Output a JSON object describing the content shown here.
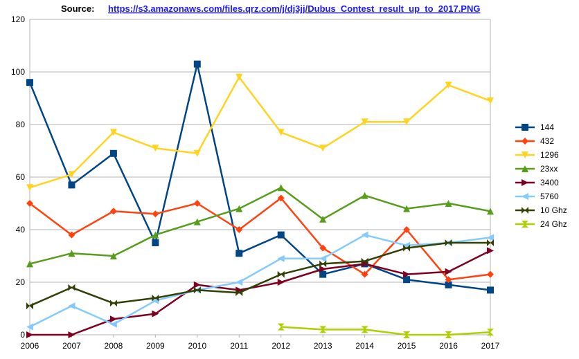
{
  "source": {
    "label": "Source:",
    "link": "https://s3.amazonaws.com/files.qrz.com/j/dj3jj/Dubus_Contest_result_up_to_2017.PNG"
  },
  "chart_data": {
    "type": "line",
    "x": [
      2006,
      2007,
      2008,
      2009,
      2010,
      2011,
      2012,
      2013,
      2014,
      2015,
      2016,
      2017
    ],
    "ylim": [
      0,
      120
    ],
    "yticks": [
      0,
      20,
      40,
      60,
      80,
      100,
      120
    ],
    "grid": "horizontal",
    "legend_position": "right",
    "series": [
      {
        "name": "144",
        "color": "#004586",
        "marker": "square",
        "values": [
          96,
          57,
          69,
          35,
          103,
          31,
          38,
          23,
          27,
          21,
          19,
          17
        ]
      },
      {
        "name": "432",
        "color": "#ff420e",
        "marker": "diamond",
        "values": [
          50,
          38,
          47,
          46,
          50,
          40,
          52,
          33,
          23,
          40,
          21,
          23
        ]
      },
      {
        "name": "1296",
        "color": "#ffd320",
        "marker": "triangle-down",
        "values": [
          56,
          61,
          77,
          71,
          69,
          98,
          77,
          71,
          81,
          81,
          95,
          89
        ]
      },
      {
        "name": "23xx",
        "color": "#579d1c",
        "marker": "triangle-up",
        "values": [
          27,
          31,
          30,
          38,
          43,
          48,
          56,
          44,
          53,
          48,
          50,
          47
        ]
      },
      {
        "name": "3400",
        "color": "#7e0021",
        "marker": "triangle-right",
        "values": [
          0,
          0,
          6,
          8,
          19,
          17,
          20,
          25,
          27,
          23,
          24,
          32
        ]
      },
      {
        "name": "5760",
        "color": "#83caff",
        "marker": "triangle-left",
        "values": [
          3,
          11,
          4,
          13,
          17,
          20,
          29,
          29,
          38,
          34,
          35,
          37
        ]
      },
      {
        "name": "10 Ghz",
        "color": "#314004",
        "marker": "bowtie",
        "values": [
          11,
          18,
          12,
          14,
          17,
          16,
          23,
          27,
          28,
          33,
          35,
          35
        ]
      },
      {
        "name": "24 Ghz",
        "color": "#aecf00",
        "marker": "hourglass",
        "values": [
          null,
          null,
          null,
          null,
          null,
          null,
          3,
          2,
          2,
          0,
          0,
          1
        ]
      }
    ]
  }
}
